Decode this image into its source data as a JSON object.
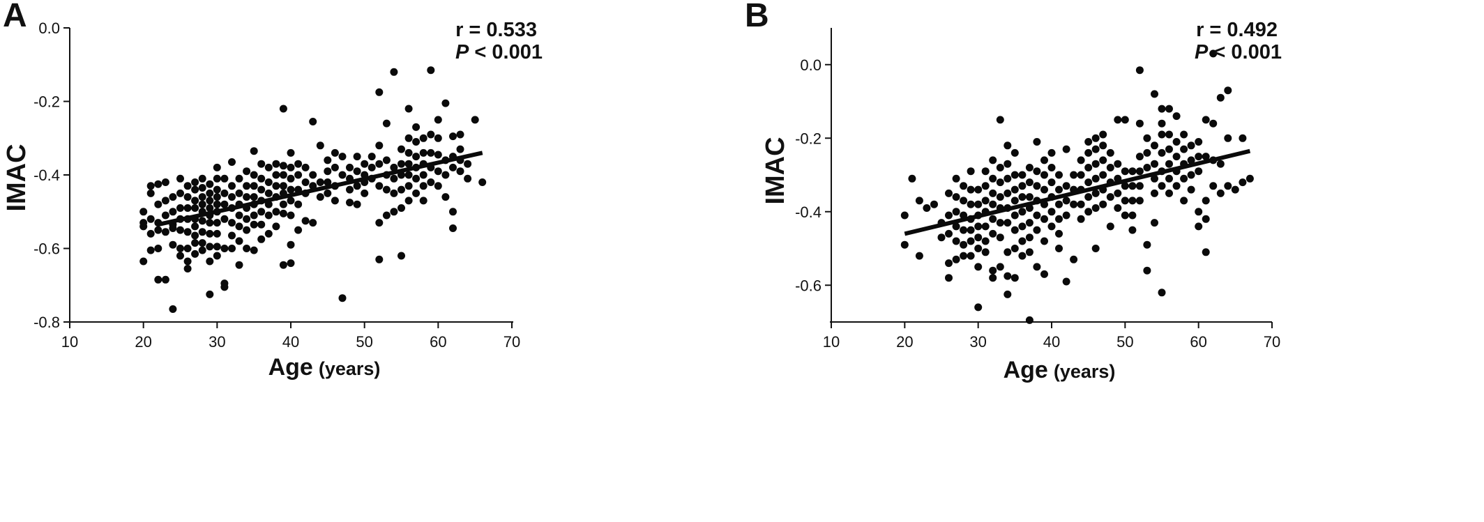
{
  "chart_data": [
    {
      "panel": "A",
      "type": "scatter",
      "xlabel": "Age",
      "xlabel_unit": "(years)",
      "ylabel": "IMAC",
      "xlim": [
        10,
        70
      ],
      "ylim": [
        -0.8,
        0.0
      ],
      "xticks": [
        "10",
        "20",
        "30",
        "40",
        "50",
        "60",
        "70"
      ],
      "yticks": [
        "0.0",
        "-0.2",
        "-0.4",
        "-0.6",
        "-0.8"
      ],
      "ytick_values": [
        0.0,
        -0.2,
        -0.4,
        -0.6,
        -0.8
      ],
      "stats": {
        "r": "r = 0.533",
        "p_symbol": "P",
        "p_text": " < 0.001"
      },
      "trendline": {
        "x": [
          22,
          66
        ],
        "y": [
          -0.535,
          -0.34
        ]
      },
      "points": {
        "x": [
          20,
          20,
          20,
          20,
          21,
          21,
          21,
          21,
          21,
          22,
          22,
          22,
          22,
          22,
          22,
          23,
          23,
          23,
          23,
          23,
          24,
          24,
          24,
          24,
          24,
          24,
          25,
          25,
          25,
          25,
          25,
          25,
          25,
          26,
          26,
          26,
          26,
          26,
          26,
          26,
          26,
          27,
          27,
          27,
          27,
          27,
          27,
          27,
          27,
          27,
          28,
          28,
          28,
          28,
          28,
          28,
          28,
          28,
          28,
          29,
          29,
          29,
          29,
          29,
          29,
          29,
          29,
          29,
          29,
          30,
          30,
          30,
          30,
          30,
          30,
          30,
          30,
          30,
          30,
          31,
          31,
          31,
          31,
          31,
          31,
          31,
          32,
          32,
          32,
          32,
          32,
          32,
          32,
          33,
          33,
          33,
          33,
          33,
          33,
          33,
          34,
          34,
          34,
          34,
          34,
          34,
          34,
          35,
          35,
          35,
          35,
          35,
          35,
          35,
          35,
          36,
          36,
          36,
          36,
          36,
          36,
          36,
          37,
          37,
          37,
          37,
          37,
          37,
          38,
          38,
          38,
          38,
          38,
          38,
          39,
          39,
          39,
          39,
          39,
          39,
          39,
          39,
          40,
          40,
          40,
          40,
          40,
          40,
          40,
          40,
          41,
          41,
          41,
          41,
          41,
          42,
          42,
          42,
          42,
          43,
          43,
          43,
          43,
          44,
          44,
          44,
          45,
          45,
          45,
          45,
          46,
          46,
          46,
          46,
          47,
          47,
          47,
          48,
          48,
          48,
          48,
          49,
          49,
          49,
          49,
          50,
          50,
          50,
          50,
          51,
          51,
          51,
          52,
          52,
          52,
          52,
          52,
          52,
          53,
          53,
          53,
          53,
          53,
          54,
          54,
          54,
          54,
          54,
          55,
          55,
          55,
          55,
          55,
          55,
          56,
          56,
          56,
          56,
          56,
          56,
          56,
          57,
          57,
          57,
          57,
          57,
          57,
          58,
          58,
          58,
          58,
          58,
          58,
          59,
          59,
          59,
          59,
          59,
          60,
          60,
          60,
          60,
          60,
          61,
          61,
          61,
          61,
          62,
          62,
          62,
          62,
          62,
          63,
          63,
          63,
          63,
          64,
          64,
          65,
          66
        ],
        "y": [
          -0.5,
          -0.53,
          -0.54,
          -0.635,
          -0.43,
          -0.45,
          -0.52,
          -0.56,
          -0.605,
          -0.425,
          -0.48,
          -0.53,
          -0.55,
          -0.6,
          -0.685,
          -0.42,
          -0.47,
          -0.51,
          -0.555,
          -0.685,
          -0.46,
          -0.5,
          -0.535,
          -0.545,
          -0.59,
          -0.765,
          -0.41,
          -0.45,
          -0.49,
          -0.52,
          -0.55,
          -0.6,
          -0.62,
          -0.43,
          -0.46,
          -0.49,
          -0.52,
          -0.555,
          -0.6,
          -0.635,
          -0.655,
          -0.42,
          -0.44,
          -0.47,
          -0.49,
          -0.52,
          -0.54,
          -0.565,
          -0.585,
          -0.615,
          -0.41,
          -0.435,
          -0.46,
          -0.48,
          -0.5,
          -0.525,
          -0.555,
          -0.585,
          -0.605,
          -0.425,
          -0.45,
          -0.47,
          -0.49,
          -0.51,
          -0.53,
          -0.56,
          -0.595,
          -0.635,
          -0.725,
          -0.38,
          -0.41,
          -0.44,
          -0.46,
          -0.48,
          -0.5,
          -0.53,
          -0.56,
          -0.595,
          -0.62,
          -0.41,
          -0.45,
          -0.48,
          -0.52,
          -0.6,
          -0.695,
          -0.705,
          -0.43,
          -0.46,
          -0.49,
          -0.53,
          -0.565,
          -0.6,
          -0.365,
          -0.41,
          -0.45,
          -0.48,
          -0.51,
          -0.54,
          -0.58,
          -0.645,
          -0.39,
          -0.43,
          -0.46,
          -0.49,
          -0.52,
          -0.55,
          -0.6,
          -0.335,
          -0.4,
          -0.43,
          -0.46,
          -0.48,
          -0.51,
          -0.535,
          -0.605,
          -0.37,
          -0.41,
          -0.44,
          -0.47,
          -0.5,
          -0.535,
          -0.575,
          -0.38,
          -0.42,
          -0.45,
          -0.48,
          -0.51,
          -0.56,
          -0.37,
          -0.4,
          -0.43,
          -0.46,
          -0.5,
          -0.54,
          -0.22,
          -0.375,
          -0.4,
          -0.43,
          -0.45,
          -0.48,
          -0.505,
          -0.645,
          -0.34,
          -0.38,
          -0.41,
          -0.44,
          -0.47,
          -0.51,
          -0.59,
          -0.64,
          -0.37,
          -0.4,
          -0.44,
          -0.48,
          -0.55,
          -0.38,
          -0.42,
          -0.45,
          -0.525,
          -0.255,
          -0.4,
          -0.43,
          -0.53,
          -0.32,
          -0.42,
          -0.46,
          -0.36,
          -0.39,
          -0.42,
          -0.45,
          -0.34,
          -0.38,
          -0.43,
          -0.47,
          -0.35,
          -0.4,
          -0.735,
          -0.38,
          -0.41,
          -0.44,
          -0.475,
          -0.35,
          -0.39,
          -0.43,
          -0.48,
          -0.37,
          -0.4,
          -0.42,
          -0.45,
          -0.35,
          -0.38,
          -0.41,
          -0.175,
          -0.32,
          -0.37,
          -0.43,
          -0.53,
          -0.63,
          -0.26,
          -0.36,
          -0.4,
          -0.44,
          -0.51,
          -0.12,
          -0.38,
          -0.41,
          -0.45,
          -0.5,
          -0.33,
          -0.37,
          -0.4,
          -0.44,
          -0.49,
          -0.62,
          -0.22,
          -0.3,
          -0.34,
          -0.37,
          -0.4,
          -0.43,
          -0.47,
          -0.27,
          -0.31,
          -0.35,
          -0.38,
          -0.41,
          -0.45,
          -0.3,
          -0.34,
          -0.37,
          -0.4,
          -0.43,
          -0.47,
          -0.115,
          -0.29,
          -0.34,
          -0.38,
          -0.42,
          -0.25,
          -0.3,
          -0.345,
          -0.39,
          -0.43,
          -0.205,
          -0.36,
          -0.4,
          -0.46,
          -0.295,
          -0.35,
          -0.38,
          -0.5,
          -0.545,
          -0.29,
          -0.33,
          -0.36,
          -0.39,
          -0.37,
          -0.41,
          -0.25,
          -0.42
        ]
      }
    },
    {
      "panel": "B",
      "type": "scatter",
      "xlabel": "Age",
      "xlabel_unit": "(years)",
      "ylabel": "IMAC",
      "xlim": [
        10,
        70
      ],
      "ylim": [
        -0.7,
        0.1
      ],
      "xticks": [
        "10",
        "20",
        "30",
        "40",
        "50",
        "60",
        "70"
      ],
      "yticks": [
        "0.0",
        "-0.2",
        "-0.4",
        "-0.6"
      ],
      "ytick_values": [
        0.0,
        -0.2,
        -0.4,
        -0.6
      ],
      "stats": {
        "r": "r = 0.492",
        "p_symbol": "P",
        "p_text": " < 0.001"
      },
      "trendline": {
        "x": [
          20,
          67
        ],
        "y": [
          -0.46,
          -0.235
        ]
      },
      "points": {
        "x": [
          20,
          20,
          21,
          22,
          22,
          23,
          24,
          25,
          25,
          26,
          26,
          26,
          26,
          26,
          27,
          27,
          27,
          27,
          27,
          27,
          28,
          28,
          28,
          28,
          28,
          28,
          29,
          29,
          29,
          29,
          29,
          29,
          29,
          30,
          30,
          30,
          30,
          30,
          30,
          30,
          30,
          31,
          31,
          31,
          31,
          31,
          31,
          31,
          32,
          32,
          32,
          32,
          32,
          32,
          32,
          32,
          33,
          33,
          33,
          33,
          33,
          33,
          33,
          33,
          34,
          34,
          34,
          34,
          34,
          34,
          34,
          34,
          34,
          35,
          35,
          35,
          35,
          35,
          35,
          35,
          35,
          36,
          36,
          36,
          36,
          36,
          36,
          36,
          37,
          37,
          37,
          37,
          37,
          37,
          37,
          37,
          38,
          38,
          38,
          38,
          38,
          38,
          38,
          39,
          39,
          39,
          39,
          39,
          39,
          39,
          40,
          40,
          40,
          40,
          40,
          40,
          41,
          41,
          41,
          41,
          41,
          41,
          42,
          42,
          42,
          42,
          42,
          43,
          43,
          43,
          43,
          44,
          44,
          44,
          44,
          44,
          45,
          45,
          45,
          45,
          45,
          45,
          46,
          46,
          46,
          46,
          46,
          46,
          46,
          47,
          47,
          47,
          47,
          47,
          47,
          48,
          48,
          48,
          48,
          48,
          49,
          49,
          49,
          49,
          49,
          50,
          50,
          50,
          50,
          50,
          51,
          51,
          51,
          51,
          51,
          52,
          52,
          52,
          52,
          52,
          52,
          53,
          53,
          53,
          53,
          53,
          54,
          54,
          54,
          54,
          54,
          54,
          55,
          55,
          55,
          55,
          55,
          55,
          55,
          56,
          56,
          56,
          56,
          56,
          56,
          57,
          57,
          57,
          57,
          57,
          58,
          58,
          58,
          58,
          58,
          59,
          59,
          59,
          59,
          60,
          60,
          60,
          60,
          60,
          61,
          61,
          61,
          61,
          61,
          62,
          62,
          62,
          62,
          63,
          63,
          63,
          64,
          64,
          64,
          65,
          66,
          66,
          67
        ],
        "y": [
          -0.41,
          -0.49,
          -0.31,
          -0.37,
          -0.52,
          -0.39,
          -0.38,
          -0.43,
          -0.47,
          -0.35,
          -0.41,
          -0.46,
          -0.54,
          -0.58,
          -0.31,
          -0.36,
          -0.4,
          -0.44,
          -0.48,
          -0.53,
          -0.33,
          -0.37,
          -0.41,
          -0.45,
          -0.49,
          -0.52,
          -0.29,
          -0.34,
          -0.38,
          -0.42,
          -0.45,
          -0.48,
          -0.52,
          -0.34,
          -0.38,
          -0.41,
          -0.44,
          -0.47,
          -0.5,
          -0.55,
          -0.66,
          -0.29,
          -0.33,
          -0.37,
          -0.4,
          -0.44,
          -0.48,
          -0.51,
          -0.26,
          -0.31,
          -0.35,
          -0.38,
          -0.42,
          -0.46,
          -0.56,
          -0.58,
          -0.15,
          -0.28,
          -0.32,
          -0.36,
          -0.39,
          -0.43,
          -0.47,
          -0.55,
          -0.22,
          -0.27,
          -0.31,
          -0.35,
          -0.39,
          -0.43,
          -0.51,
          -0.575,
          -0.625,
          -0.24,
          -0.3,
          -0.34,
          -0.37,
          -0.41,
          -0.45,
          -0.5,
          -0.58,
          -0.3,
          -0.33,
          -0.36,
          -0.4,
          -0.44,
          -0.48,
          -0.52,
          -0.28,
          -0.32,
          -0.36,
          -0.39,
          -0.43,
          -0.47,
          -0.51,
          -0.695,
          -0.21,
          -0.29,
          -0.33,
          -0.37,
          -0.41,
          -0.45,
          -0.55,
          -0.26,
          -0.3,
          -0.34,
          -0.38,
          -0.42,
          -0.48,
          -0.57,
          -0.24,
          -0.28,
          -0.32,
          -0.36,
          -0.4,
          -0.44,
          -0.3,
          -0.34,
          -0.38,
          -0.42,
          -0.46,
          -0.5,
          -0.23,
          -0.33,
          -0.37,
          -0.41,
          -0.59,
          -0.3,
          -0.34,
          -0.38,
          -0.53,
          -0.26,
          -0.3,
          -0.34,
          -0.38,
          -0.42,
          -0.21,
          -0.24,
          -0.28,
          -0.32,
          -0.36,
          -0.4,
          -0.2,
          -0.23,
          -0.27,
          -0.31,
          -0.35,
          -0.39,
          -0.5,
          -0.19,
          -0.22,
          -0.26,
          -0.3,
          -0.34,
          -0.38,
          -0.24,
          -0.28,
          -0.32,
          -0.36,
          -0.44,
          -0.15,
          -0.27,
          -0.31,
          -0.35,
          -0.39,
          -0.15,
          -0.29,
          -0.33,
          -0.37,
          -0.41,
          -0.29,
          -0.33,
          -0.37,
          -0.41,
          -0.45,
          -0.015,
          -0.16,
          -0.25,
          -0.29,
          -0.33,
          -0.37,
          -0.2,
          -0.24,
          -0.28,
          -0.49,
          -0.56,
          -0.08,
          -0.22,
          -0.27,
          -0.31,
          -0.35,
          -0.43,
          -0.12,
          -0.16,
          -0.19,
          -0.24,
          -0.29,
          -0.33,
          -0.62,
          -0.12,
          -0.19,
          -0.23,
          -0.27,
          -0.31,
          -0.35,
          -0.14,
          -0.21,
          -0.25,
          -0.29,
          -0.33,
          -0.19,
          -0.23,
          -0.27,
          -0.31,
          -0.37,
          -0.22,
          -0.26,
          -0.3,
          -0.34,
          -0.21,
          -0.25,
          -0.29,
          -0.4,
          -0.44,
          -0.15,
          -0.25,
          -0.37,
          -0.42,
          -0.51,
          0.03,
          -0.16,
          -0.26,
          -0.33,
          -0.09,
          -0.27,
          -0.35,
          -0.07,
          -0.2,
          -0.33,
          -0.34,
          -0.2,
          -0.32,
          -0.31
        ]
      }
    }
  ]
}
